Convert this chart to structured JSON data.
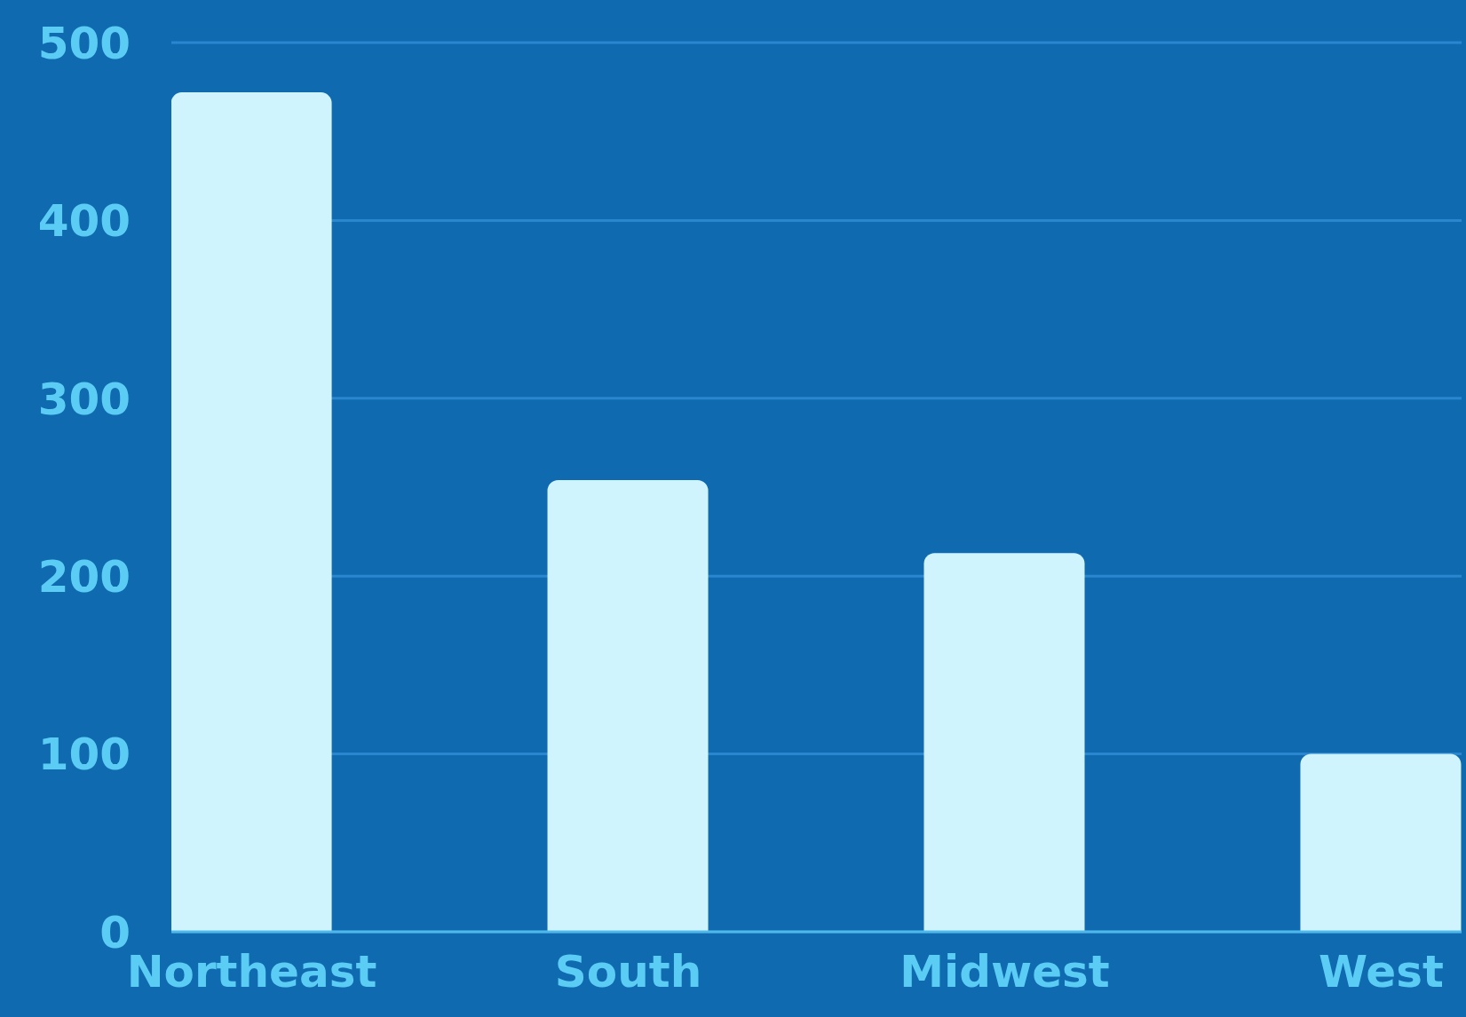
{
  "chart_data": {
    "type": "bar",
    "categories": [
      "Northeast",
      "South",
      "Midwest",
      "West"
    ],
    "values": [
      472,
      254,
      213,
      100
    ],
    "color": "#d0f4fe",
    "ylim": [
      0,
      500
    ],
    "yticks": [
      0,
      100,
      200,
      300,
      400,
      500
    ],
    "grid": "y",
    "legend": false
  }
}
